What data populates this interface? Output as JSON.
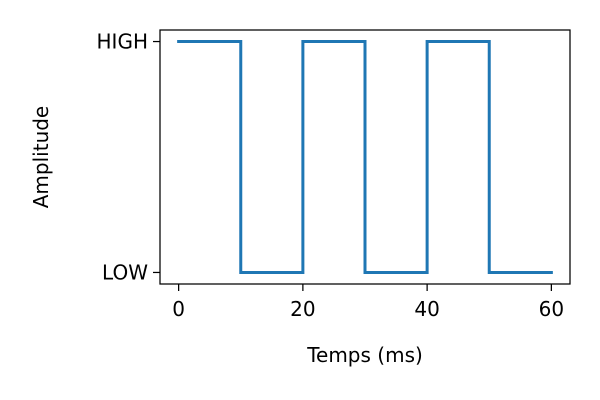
{
  "chart_data": {
    "type": "line",
    "step": true,
    "xlabel": "Temps (ms)",
    "ylabel": "Amplitude",
    "xlim": [
      -3,
      63
    ],
    "ylim": [
      -0.05,
      1.05
    ],
    "x_ticks": [
      0,
      20,
      40,
      60
    ],
    "x_tick_labels": [
      "0",
      "20",
      "40",
      "60"
    ],
    "y_ticks": [
      0,
      1
    ],
    "y_tick_labels": [
      "LOW",
      "HIGH"
    ],
    "grid": false,
    "series": [
      {
        "color": "#1f77b4",
        "x": [
          0,
          10,
          10,
          20,
          20,
          30,
          30,
          40,
          40,
          50,
          50,
          60
        ],
        "y": [
          1,
          1,
          0,
          0,
          1,
          1,
          0,
          0,
          1,
          1,
          0,
          0
        ]
      }
    ]
  }
}
